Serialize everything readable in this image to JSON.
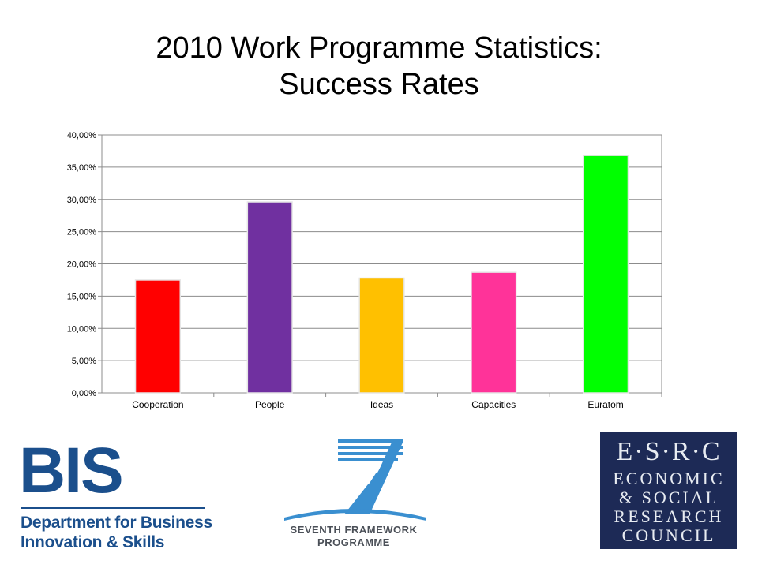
{
  "title": {
    "line1": "2010 Work Programme Statistics:",
    "line2": "Success Rates"
  },
  "chart_data": {
    "type": "bar",
    "title": "",
    "xlabel": "",
    "ylabel": "",
    "categories": [
      "Cooperation",
      "People",
      "Ideas",
      "Capacities",
      "Euratom"
    ],
    "values": [
      17.5,
      29.6,
      17.8,
      18.7,
      36.8
    ],
    "colors": [
      "#ff0000",
      "#7030a0",
      "#ffc000",
      "#ff3399",
      "#00ff00"
    ],
    "ylim": [
      0,
      40
    ],
    "yticks": [
      0,
      5,
      10,
      15,
      20,
      25,
      30,
      35,
      40
    ],
    "ytick_labels": [
      "0,00%",
      "5,00%",
      "10,00%",
      "15,00%",
      "20,00%",
      "25,00%",
      "30,00%",
      "35,00%",
      "40,00%"
    ],
    "grid": true,
    "legend": "none"
  },
  "logos": {
    "bis": {
      "big": "BIS",
      "line1": "Department for Business",
      "line2": "Innovation & Skills",
      "color": "#1b4f8c"
    },
    "fp7": {
      "line1": "SEVENTH FRAMEWORK",
      "line2": "PROGRAMME",
      "color": "#3a8fd0"
    },
    "esrc": {
      "line1": "E·S·R·C",
      "line2": "ECONOMIC",
      "line3": "& SOCIAL",
      "line4": "RESEARCH",
      "line5": "COUNCIL",
      "background": "#1d2a56"
    }
  }
}
